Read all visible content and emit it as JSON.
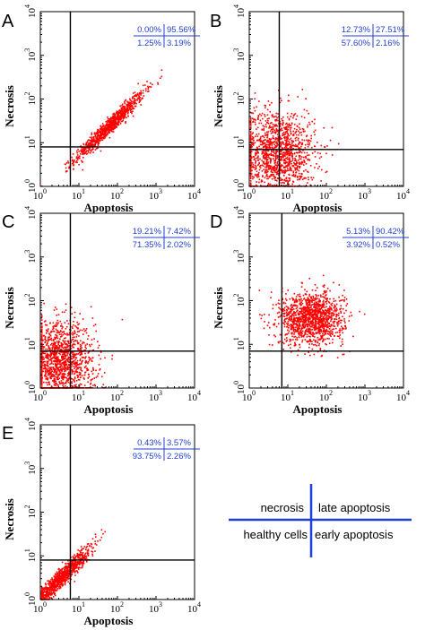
{
  "chart_data": [
    {
      "type": "scatter",
      "panel": "A",
      "xlabel": "Apoptosis",
      "ylabel": "Necrosis",
      "log_scale": true,
      "xlim": [
        1,
        10000
      ],
      "ylim": [
        1,
        10000
      ],
      "x_ticks": [
        "10",
        "10",
        "10",
        "10",
        "10"
      ],
      "tick_exponents": [
        "0",
        "1",
        "2",
        "3",
        "4"
      ],
      "gate": {
        "x": 6,
        "y": 8
      },
      "quadrants": {
        "upper_left": "0.00%",
        "upper_right": "95.56%",
        "lower_left": "1.25%",
        "lower_right": "3.19%"
      },
      "color": "#ff0000",
      "cloud": {
        "x_center": 60,
        "y_center": 25,
        "x_spread": 0.45,
        "y_spread": 0.28,
        "correlated": true,
        "n": 900
      }
    },
    {
      "type": "scatter",
      "panel": "B",
      "xlabel": "Apoptosis",
      "ylabel": "Necrosis",
      "log_scale": true,
      "xlim": [
        1,
        10000
      ],
      "ylim": [
        1,
        10000
      ],
      "gate": {
        "x": 6,
        "y": 7
      },
      "quadrants": {
        "upper_left": "12.73%",
        "upper_right": "27.51%",
        "lower_left": "57.60%",
        "lower_right": "2.16%"
      },
      "color": "#ff0000",
      "cloud": {
        "x_center": 5,
        "y_center": 6,
        "x_spread": 0.5,
        "y_spread": 0.5,
        "correlated": false,
        "n": 1400
      }
    },
    {
      "type": "scatter",
      "panel": "C",
      "xlabel": "Apoptosis",
      "ylabel": "Necrosis",
      "log_scale": true,
      "xlim": [
        1,
        10000
      ],
      "ylim": [
        1,
        10000
      ],
      "gate": {
        "x": 6,
        "y": 7
      },
      "quadrants": {
        "upper_left": "19.21%",
        "upper_right": "7.42%",
        "lower_left": "71.35%",
        "lower_right": "2.02%"
      },
      "color": "#ff0000",
      "cloud": {
        "x_center": 3,
        "y_center": 4,
        "x_spread": 0.45,
        "y_spread": 0.45,
        "correlated": false,
        "n": 1400
      }
    },
    {
      "type": "scatter",
      "panel": "D",
      "xlabel": "Apoptosis",
      "ylabel": "Necrosis",
      "log_scale": true,
      "xlim": [
        1,
        10000
      ],
      "ylim": [
        1,
        10000
      ],
      "gate": {
        "x": 7,
        "y": 7
      },
      "quadrants": {
        "upper_left": "5.13%",
        "upper_right": "90.42%",
        "lower_left": "3.92%",
        "lower_right": "0.52%"
      },
      "color": "#ff0000",
      "cloud": {
        "x_center": 40,
        "y_center": 40,
        "x_spread": 0.42,
        "y_spread": 0.3,
        "correlated": false,
        "n": 1300
      }
    },
    {
      "type": "scatter",
      "panel": "E",
      "xlabel": "Apoptosis",
      "ylabel": "Necrosis",
      "log_scale": true,
      "xlim": [
        1,
        10000
      ],
      "ylim": [
        1,
        10000
      ],
      "gate": {
        "x": 6,
        "y": 8
      },
      "quadrants": {
        "upper_left": "0.43%",
        "upper_right": "3.57%",
        "lower_left": "93.75%",
        "lower_right": "2.26%"
      },
      "color": "#ff0000",
      "cloud": {
        "x_center": 3,
        "y_center": 3,
        "x_spread": 0.4,
        "y_spread": 0.32,
        "correlated": true,
        "n": 1000
      }
    }
  ],
  "legend": {
    "upper_left": "necrosis",
    "upper_right": "late apoptosis",
    "lower_left": "healthy cells",
    "lower_right": "early apoptosis",
    "line_color": "#1f3fd6"
  }
}
